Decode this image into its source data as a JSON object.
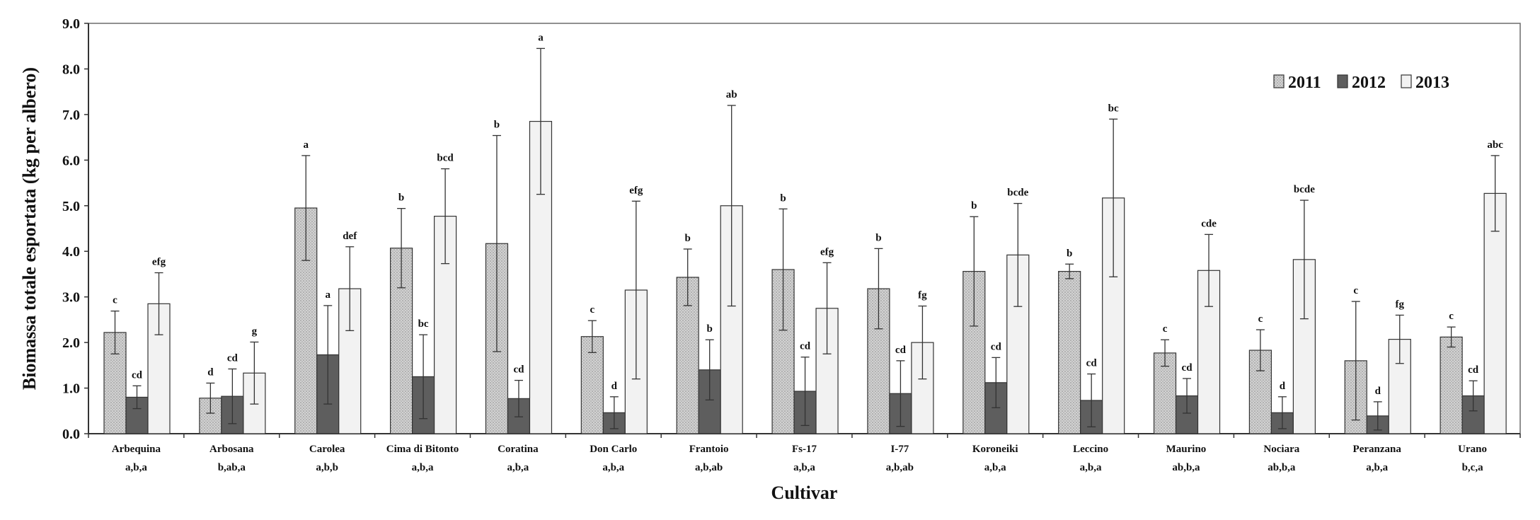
{
  "chart_data": {
    "type": "bar",
    "xlabel": "Cultivar",
    "ylabel": "Biomassa totale esportata (kg per albero)",
    "ylim": [
      0,
      9
    ],
    "yticks": [
      "0.0",
      "1.0",
      "2.0",
      "3.0",
      "4.0",
      "5.0",
      "6.0",
      "7.0",
      "8.0",
      "9.0"
    ],
    "grid": false,
    "legend_position": "top-right",
    "categories": [
      "Arbequina",
      "Arbosana",
      "Carolea",
      "Cima di Bitonto",
      "Coratina",
      "Don Carlo",
      "Frantoio",
      "Fs-17",
      "I-77",
      "Koroneiki",
      "Leccino",
      "Maurino",
      "Nociara",
      "Peranzana",
      "Urano"
    ],
    "category_stats": [
      "a,b,a",
      "b,ab,a",
      "a,b,b",
      "a,b,a",
      "a,b,a",
      "a,b,a",
      "a,b,ab",
      "a,b,a",
      "a,b,ab",
      "a,b,a",
      "a,b,a",
      "ab,b,a",
      "ab,b,a",
      "a,b,a",
      "b,c,a"
    ],
    "series": [
      {
        "name": "2011",
        "color": "#c8c8c8",
        "pattern": "dotted",
        "values": [
          2.22,
          0.78,
          4.95,
          4.07,
          4.17,
          2.13,
          3.43,
          3.6,
          3.18,
          3.56,
          3.56,
          1.77,
          1.83,
          1.6,
          2.12
        ],
        "errors": [
          0.47,
          0.33,
          1.15,
          0.87,
          2.37,
          0.35,
          0.62,
          1.33,
          0.88,
          1.2,
          0.16,
          0.29,
          0.45,
          1.3,
          0.22
        ],
        "labels": [
          "c",
          "d",
          "a",
          "b",
          "b",
          "c",
          "b",
          "b",
          "b",
          "b",
          "b",
          "c",
          "c",
          "c",
          "c"
        ]
      },
      {
        "name": "2012",
        "color": "#5e5e5e",
        "pattern": "solid",
        "values": [
          0.8,
          0.82,
          1.73,
          1.25,
          0.77,
          0.46,
          1.4,
          0.93,
          0.88,
          1.12,
          0.73,
          0.83,
          0.46,
          0.39,
          0.83
        ],
        "errors": [
          0.25,
          0.6,
          1.08,
          0.92,
          0.4,
          0.35,
          0.66,
          0.75,
          0.72,
          0.55,
          0.58,
          0.38,
          0.35,
          0.31,
          0.33
        ],
        "labels": [
          "cd",
          "cd",
          "a",
          "bc",
          "cd",
          "d",
          "b",
          "cd",
          "cd",
          "cd",
          "cd",
          "cd",
          "d",
          "d",
          "cd"
        ]
      },
      {
        "name": "2013",
        "color": "#f2f2f2",
        "pattern": "plain",
        "values": [
          2.85,
          1.33,
          3.18,
          4.77,
          6.85,
          3.15,
          5.0,
          2.75,
          2.0,
          3.92,
          5.17,
          3.58,
          3.82,
          2.07,
          5.27
        ],
        "errors": [
          0.68,
          0.68,
          0.92,
          1.04,
          1.6,
          1.95,
          2.2,
          1.0,
          0.8,
          1.13,
          1.73,
          0.79,
          1.3,
          0.53,
          0.83
        ],
        "labels": [
          "efg",
          "g",
          "def",
          "bcd",
          "a",
          "efg",
          "ab",
          "efg",
          "fg",
          "bcde",
          "bc",
          "cde",
          "bcde",
          "fg",
          "abc"
        ]
      }
    ]
  }
}
